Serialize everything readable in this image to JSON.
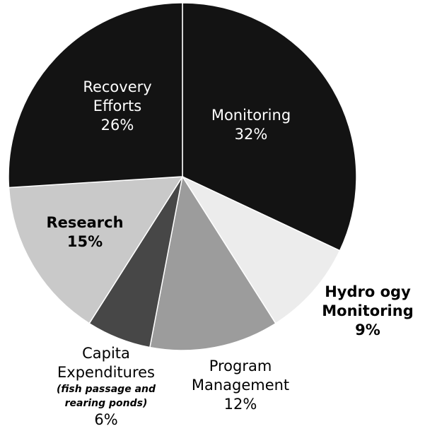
{
  "chart_data": {
    "type": "pie",
    "categories": [
      "Monitoring",
      "Hydro ogy Monitoring",
      "Program Management",
      "Capita Expenditures",
      "Research",
      "Recovery Efforts"
    ],
    "values": [
      32,
      9,
      12,
      6,
      15,
      26
    ],
    "value_labels": [
      "32%",
      "9%",
      "12%",
      "6%",
      "15%",
      "26%"
    ],
    "colors": [
      "#131313",
      "#ececec",
      "#9c9c9c",
      "#474747",
      "#c9c9c9",
      "#131313"
    ],
    "annotations": [
      {
        "text": "(fish passage and rearing ponds)"
      }
    ]
  }
}
